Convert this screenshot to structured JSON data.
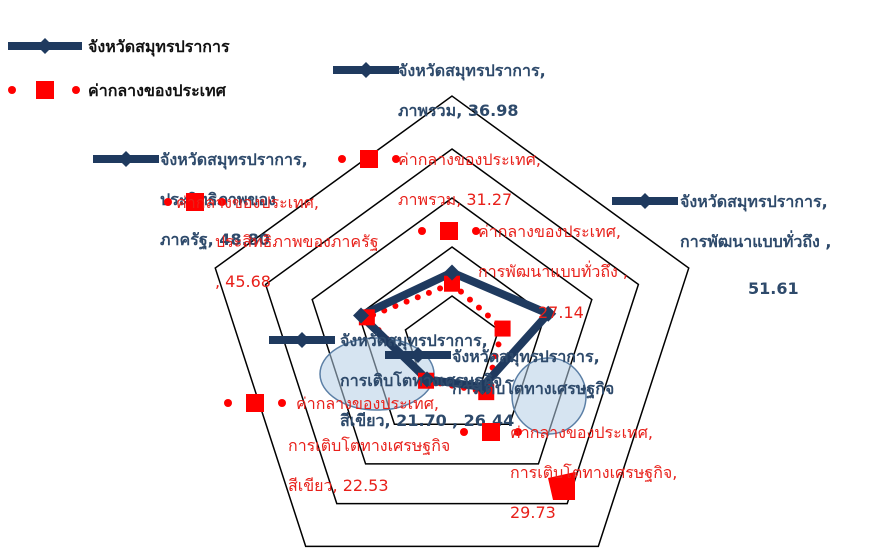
{
  "chart_data": {
    "type": "radar",
    "axes": [
      "ภาพรวม",
      "การพัฒนาแบบทั่วถึง",
      "การเติบโตทางเศรษฐกิจ",
      "การเติบโตทางเศรษฐกิจสีเขียว",
      "ประสิทธิภาพของภาครัฐ"
    ],
    "axis_max": 100,
    "rings": 4,
    "series": [
      {
        "name": "จังหวัดสมุทรปราการ",
        "color": "#1f3a5f",
        "style": "solid-diamond",
        "values": [
          36.98,
          51.61,
          26.44,
          21.7,
          48.8
        ],
        "labels": [
          [
            "จังหวัดสมุทรปราการ,",
            "ภาพรวม, 36.98"
          ],
          [
            "จังหวัดสมุทรปราการ,",
            "การพัฒนาแบบทั่วถึง ,",
            "51.61"
          ],
          [
            "จังหวัดสมุทรปราการ,",
            "การเติบโตทางเศรษฐกิจ",
            ", 26.44"
          ],
          [
            "จังหวัดสมุทรปราการ,",
            "การเติบโตทางเศรษฐกิจ",
            "สีเขียว, 21.70"
          ],
          [
            "จังหวัดสมุทรปราการ,",
            "ประสิทธิภาพของ",
            "ภาครัฐ, 48.80"
          ]
        ]
      },
      {
        "name": "ค่ากลางของประเทศ",
        "color": "#ff0000",
        "style": "dotted-square",
        "values": [
          31.27,
          27.14,
          29.73,
          22.53,
          45.68
        ],
        "labels": [
          [
            "ค่ากลางของประเทศ,",
            "ภาพรวม, 31.27"
          ],
          [
            "ค่ากลางของประเทศ,",
            "การพัฒนาแบบทั่วถึง ,",
            "27.14"
          ],
          [
            "ค่ากลางของประเทศ,",
            "การเติบโตทางเศรษฐกิจ,",
            "29.73"
          ],
          [
            "ค่ากลางของประเทศ,",
            "การเติบโตทางเศรษฐกิจ",
            "สีเขียว, 22.53"
          ],
          [
            "ค่ากลางของประเทศ,",
            "ประสิทธิภาพของภาครัฐ",
            ", 45.68"
          ]
        ]
      }
    ],
    "legend": "top-left"
  }
}
